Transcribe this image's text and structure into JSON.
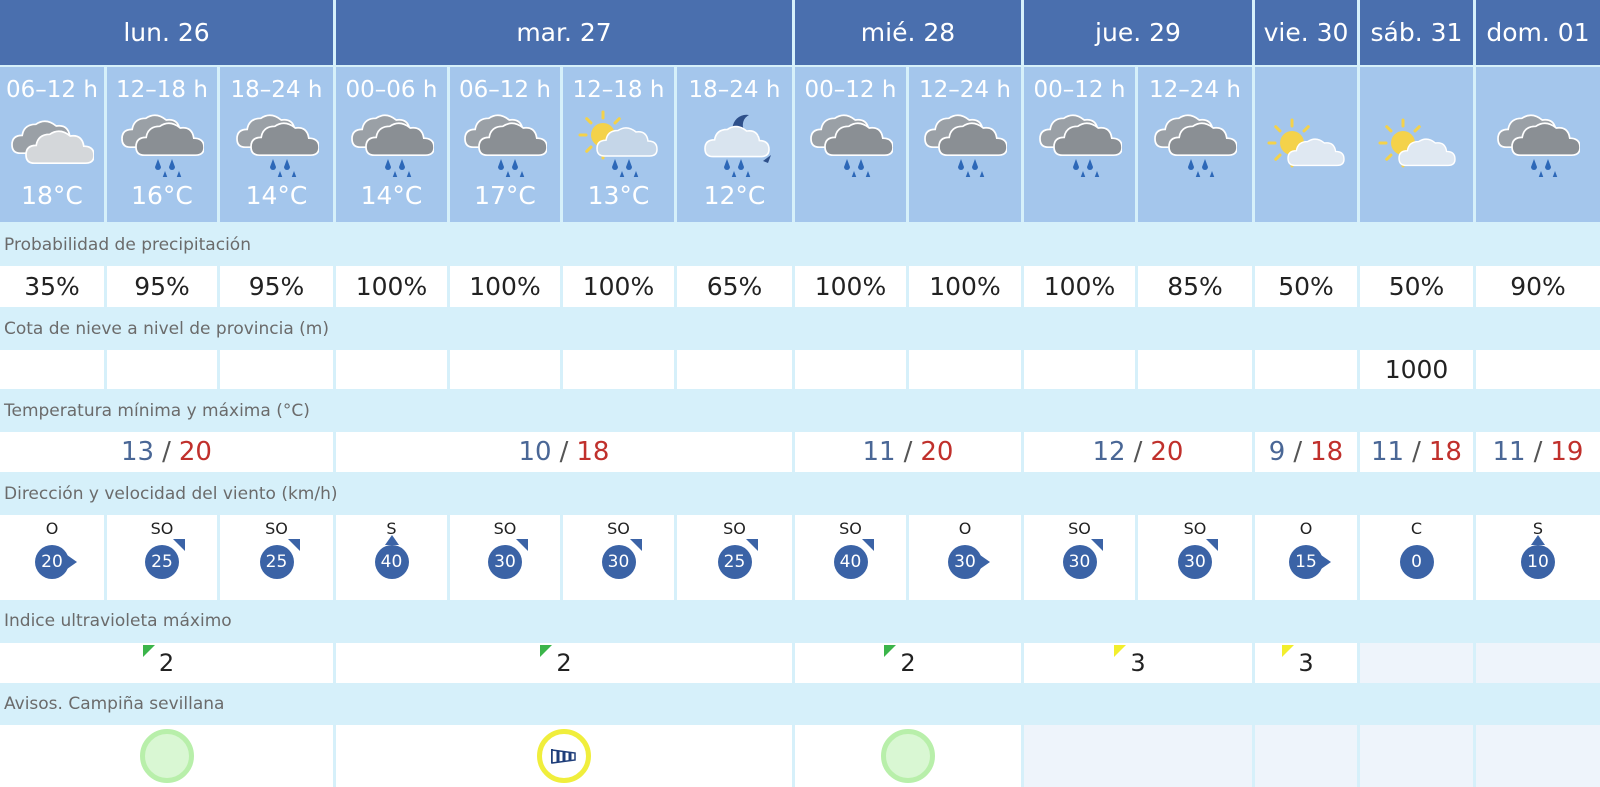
{
  "days": [
    {
      "label": "lun. 26"
    },
    {
      "label": "mar. 27"
    },
    {
      "label": "mié. 28"
    },
    {
      "label": "jue. 29"
    },
    {
      "label": "vie. 30"
    },
    {
      "label": "sáb. 31"
    },
    {
      "label": "dom. 01"
    }
  ],
  "periods": [
    {
      "range": "06–12 h",
      "icon": "cloudy-icon",
      "temp": "18°C",
      "precip": "35%",
      "snow": "",
      "wind_dir": "O",
      "wind_speed": "20"
    },
    {
      "range": "12–18 h",
      "icon": "cloud-rain-icon",
      "temp": "16°C",
      "precip": "95%",
      "snow": "",
      "wind_dir": "SO",
      "wind_speed": "25"
    },
    {
      "range": "18–24 h",
      "icon": "cloud-rain-icon",
      "temp": "14°C",
      "precip": "95%",
      "snow": "",
      "wind_dir": "SO",
      "wind_speed": "25"
    },
    {
      "range": "00–06 h",
      "icon": "cloud-rain-icon",
      "temp": "14°C",
      "precip": "100%",
      "snow": "",
      "wind_dir": "S",
      "wind_speed": "40"
    },
    {
      "range": "06–12 h",
      "icon": "cloud-rain-icon",
      "temp": "17°C",
      "precip": "100%",
      "snow": "",
      "wind_dir": "SO",
      "wind_speed": "30"
    },
    {
      "range": "12–18 h",
      "icon": "sun-cloud-rain-icon",
      "temp": "13°C",
      "precip": "100%",
      "snow": "",
      "wind_dir": "SO",
      "wind_speed": "30"
    },
    {
      "range": "18–24 h",
      "icon": "moon-cloud-rain-icon",
      "temp": "12°C",
      "precip": "65%",
      "snow": "",
      "wind_dir": "SO",
      "wind_speed": "25"
    },
    {
      "range": "00–12 h",
      "icon": "cloud-rain-icon",
      "temp": "",
      "precip": "100%",
      "snow": "",
      "wind_dir": "SO",
      "wind_speed": "40"
    },
    {
      "range": "12–24 h",
      "icon": "cloud-rain-icon",
      "temp": "",
      "precip": "100%",
      "snow": "",
      "wind_dir": "O",
      "wind_speed": "30"
    },
    {
      "range": "00–12 h",
      "icon": "cloud-rain-icon",
      "temp": "",
      "precip": "100%",
      "snow": "",
      "wind_dir": "SO",
      "wind_speed": "30"
    },
    {
      "range": "12–24 h",
      "icon": "cloud-rain-icon",
      "temp": "",
      "precip": "85%",
      "snow": "",
      "wind_dir": "SO",
      "wind_speed": "30"
    },
    {
      "range": "",
      "icon": "sun-cloud-icon",
      "temp": "",
      "precip": "50%",
      "snow": "",
      "wind_dir": "O",
      "wind_speed": "15"
    },
    {
      "range": "",
      "icon": "sun-cloud-icon",
      "temp": "",
      "precip": "50%",
      "snow": "1000",
      "wind_dir": "C",
      "wind_speed": "0"
    },
    {
      "range": "",
      "icon": "cloud-rain-icon",
      "temp": "",
      "precip": "90%",
      "snow": "",
      "wind_dir": "S",
      "wind_speed": "10"
    }
  ],
  "labels": {
    "precip": "Probabilidad de precipitación",
    "snow": "Cota de nieve a nivel de provincia (m)",
    "temp": "Temperatura mínima y máxima (°C)",
    "wind": "Dirección y velocidad del viento (km/h)",
    "uv": "Indice ultravioleta máximo",
    "warnings": "Avisos. Campiña sevillana"
  },
  "temps": [
    {
      "min": "13",
      "max": "20",
      "sep": "/"
    },
    {
      "min": "10",
      "max": "18",
      "sep": "/"
    },
    {
      "min": "11",
      "max": "20",
      "sep": "/"
    },
    {
      "min": "12",
      "max": "20",
      "sep": "/"
    },
    {
      "min": "9",
      "max": "18",
      "sep": "/"
    },
    {
      "min": "11",
      "max": "18",
      "sep": "/"
    },
    {
      "min": "11",
      "max": "19",
      "sep": "/"
    }
  ],
  "uv": [
    {
      "value": "2",
      "level": "green"
    },
    {
      "value": "2",
      "level": "green"
    },
    {
      "value": "2",
      "level": "green"
    },
    {
      "value": "3",
      "level": "yellow"
    },
    {
      "value": "3",
      "level": "yellow"
    },
    {
      "value": "",
      "level": "none"
    },
    {
      "value": "",
      "level": "none"
    }
  ],
  "warnings": [
    {
      "level": "green",
      "icon": ""
    },
    {
      "level": "yellow",
      "icon": "wind-icon"
    },
    {
      "level": "green",
      "icon": ""
    },
    {
      "level": "none",
      "icon": ""
    },
    {
      "level": "none",
      "icon": ""
    },
    {
      "level": "none",
      "icon": ""
    },
    {
      "level": "none",
      "icon": ""
    }
  ],
  "colors": {
    "header": "#4a6fae",
    "period": "#a4c6ec",
    "section": "#d6f0fa",
    "tmin": "#4a6796",
    "tmax": "#c0302c",
    "wind_badge": "#3b63a6",
    "uv_green": "#3bb54a",
    "uv_yellow": "#f2ee2c"
  }
}
